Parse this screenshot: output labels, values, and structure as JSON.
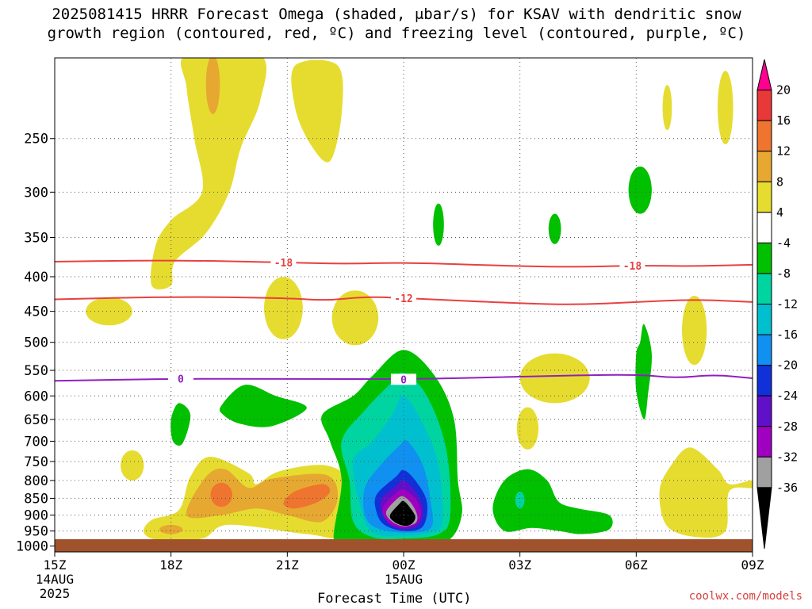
{
  "title": {
    "line1": "2025081415 HRRR Forecast Omega (shaded, μbar/s) for KSAV with dendritic snow",
    "line2": "growth region (contoured, red, ºC) and freezing level (contoured, purple, ºC)"
  },
  "footer": "coolwx.com/models",
  "chart_data": {
    "type": "heatmap",
    "xlabel": "Forecast Time (UTC)",
    "x_ticks": [
      {
        "hour": 0,
        "label": "15Z",
        "sub": [
          "14AUG",
          "2025"
        ]
      },
      {
        "hour": 3,
        "label": "18Z",
        "sub": []
      },
      {
        "hour": 6,
        "label": "21Z",
        "sub": []
      },
      {
        "hour": 9,
        "label": "00Z",
        "sub": [
          "15AUG"
        ]
      },
      {
        "hour": 12,
        "label": "03Z",
        "sub": []
      },
      {
        "hour": 15,
        "label": "06Z",
        "sub": []
      },
      {
        "hour": 18,
        "label": "09Z",
        "sub": []
      }
    ],
    "y_axis": {
      "scale": "log",
      "unit": "hPa",
      "ylim": [
        1020,
        190
      ],
      "ticks": [
        250,
        300,
        350,
        400,
        450,
        500,
        550,
        600,
        650,
        700,
        750,
        800,
        850,
        900,
        950,
        1000
      ]
    },
    "grid": true,
    "colorbar": {
      "ticks": [
        20,
        16,
        12,
        8,
        4,
        -4,
        -8,
        -12,
        -16,
        -20,
        -24,
        -28,
        -32,
        -36
      ],
      "colors": [
        "#ff0090",
        "#e83838",
        "#ee7430",
        "#e6a830",
        "#e6dc30",
        "#ffffff",
        "#00c000",
        "#00d4a0",
        "#00c0d0",
        "#1090f0",
        "#1030d8",
        "#6010c8",
        "#a000c0",
        "#a0a0a0",
        "#000000"
      ]
    },
    "contours": [
      {
        "kind": "temperature",
        "color": "#e84040",
        "label": "-18",
        "level_hpa": [
          [
            0,
            380
          ],
          [
            3,
            378
          ],
          [
            6,
            381
          ],
          [
            7.5,
            383
          ],
          [
            9,
            381
          ],
          [
            12,
            386
          ],
          [
            13.5,
            387
          ],
          [
            15,
            385
          ],
          [
            16.5,
            386
          ],
          [
            18,
            384
          ]
        ]
      },
      {
        "kind": "temperature",
        "color": "#e84040",
        "label": "-12",
        "level_hpa": [
          [
            0,
            432
          ],
          [
            3,
            428
          ],
          [
            6,
            430
          ],
          [
            7,
            434
          ],
          [
            8,
            428
          ],
          [
            9,
            430
          ],
          [
            12,
            438
          ],
          [
            13.5,
            440
          ],
          [
            15,
            436
          ],
          [
            16.5,
            432
          ],
          [
            18,
            436
          ]
        ]
      },
      {
        "kind": "freezing",
        "color": "#9020c0",
        "label": "0",
        "level_hpa": [
          [
            0,
            570
          ],
          [
            3,
            566
          ],
          [
            6,
            566
          ],
          [
            9,
            567
          ],
          [
            12,
            562
          ],
          [
            15,
            557
          ],
          [
            16,
            565
          ],
          [
            17,
            558
          ],
          [
            18,
            565
          ]
        ]
      }
    ],
    "regions": [
      {
        "value": "4 to 8",
        "color": "#e6dc30",
        "area": "upper-left plume",
        "x_hours": [
          2.5,
          5.3
        ],
        "p_range_hpa": [
          190,
          412
        ]
      },
      {
        "value": "4 to 8",
        "color": "#e6dc30",
        "area": "upper near 22Z",
        "x_hours": [
          6.2,
          7.3
        ],
        "p_range_hpa": [
          190,
          275
        ]
      },
      {
        "value": "4 to 8",
        "color": "#e6dc30",
        "area": "low-level band 18Z-22Z",
        "x_hours": [
          2.3,
          7.5
        ],
        "p_range_hpa": [
          735,
          975
        ]
      },
      {
        "value": "8 to 16",
        "color": "#e6a830",
        "area": "low-level band 18Z-22Z",
        "x_hours": [
          3.3,
          7.3
        ],
        "p_range_hpa": [
          780,
          920
        ]
      },
      {
        "value": "-4 to -36",
        "color": "#00c000",
        "area": "convective column at 00Z",
        "x_hours": [
          6.9,
          10.5
        ],
        "p_range_hpa": [
          515,
          1000
        ]
      },
      {
        "value": "below -36",
        "color": "#000000",
        "area": "core at 00Z",
        "x_hours": [
          8.6,
          9.3
        ],
        "p_range_hpa": [
          860,
          960
        ]
      },
      {
        "value": "-4 to -8",
        "color": "#00c000",
        "area": "near 04Z low levels",
        "x_hours": [
          11.5,
          14.3
        ],
        "p_range_hpa": [
          760,
          965
        ]
      },
      {
        "value": "4 to 8",
        "color": "#e6dc30",
        "area": "after 06Z low levels",
        "x_hours": [
          15.5,
          18.0
        ],
        "p_range_hpa": [
          720,
          980
        ]
      }
    ]
  }
}
